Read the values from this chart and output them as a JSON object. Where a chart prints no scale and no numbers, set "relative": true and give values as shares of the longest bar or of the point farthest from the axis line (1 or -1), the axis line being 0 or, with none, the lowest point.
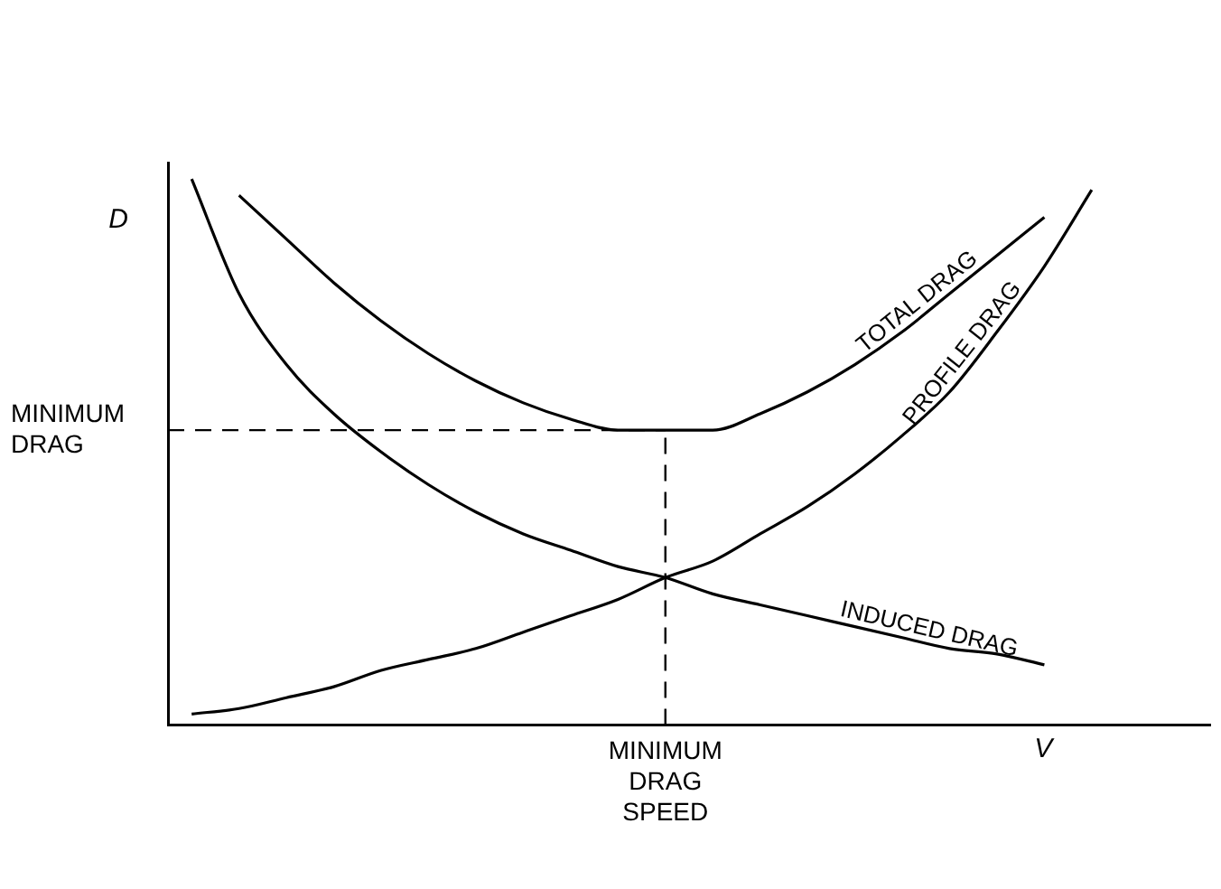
{
  "chart_data": {
    "type": "line",
    "relative": true,
    "xlabel": "V",
    "ylabel": "D",
    "categories": [
      null,
      null,
      null,
      null,
      null,
      null,
      null,
      null,
      null,
      null,
      null,
      null,
      null,
      null,
      null,
      null,
      null,
      null,
      null,
      null,
      null,
      null
    ],
    "series": [
      {
        "name": "TOTAL DRAG",
        "color": "#000000",
        "values": [
          null,
          0.97,
          0.89,
          0.81,
          0.74,
          0.68,
          0.63,
          0.59,
          0.56,
          0.54,
          0.54,
          0.54,
          0.57,
          0.61,
          0.66,
          0.72,
          0.79,
          0.86,
          0.93,
          null,
          null,
          null
        ]
      },
      {
        "name": "PROFILE DRAG",
        "color": "#000000",
        "values": [
          0.02,
          0.03,
          0.05,
          0.07,
          0.1,
          0.12,
          0.14,
          0.17,
          0.2,
          0.23,
          0.27,
          0.3,
          0.35,
          0.4,
          0.46,
          0.53,
          0.61,
          0.72,
          0.84,
          0.98,
          null,
          null
        ]
      },
      {
        "name": "INDUCED DRAG",
        "color": "#000000",
        "values": [
          1.0,
          0.79,
          0.66,
          0.57,
          0.5,
          0.44,
          0.39,
          0.35,
          0.32,
          0.29,
          0.27,
          0.24,
          0.22,
          0.2,
          0.18,
          0.16,
          0.14,
          0.13,
          0.11,
          null,
          null,
          null
        ]
      }
    ],
    "ref_lines": [
      {
        "axis": "y",
        "value": 0.54,
        "label": "MINIMUM DRAG",
        "line_style": "dashed"
      }
    ],
    "annotations": [
      "MINIMUM DRAG SPEED"
    ],
    "legend": false,
    "grid": false,
    "marker": "none",
    "line_style": "solid"
  }
}
